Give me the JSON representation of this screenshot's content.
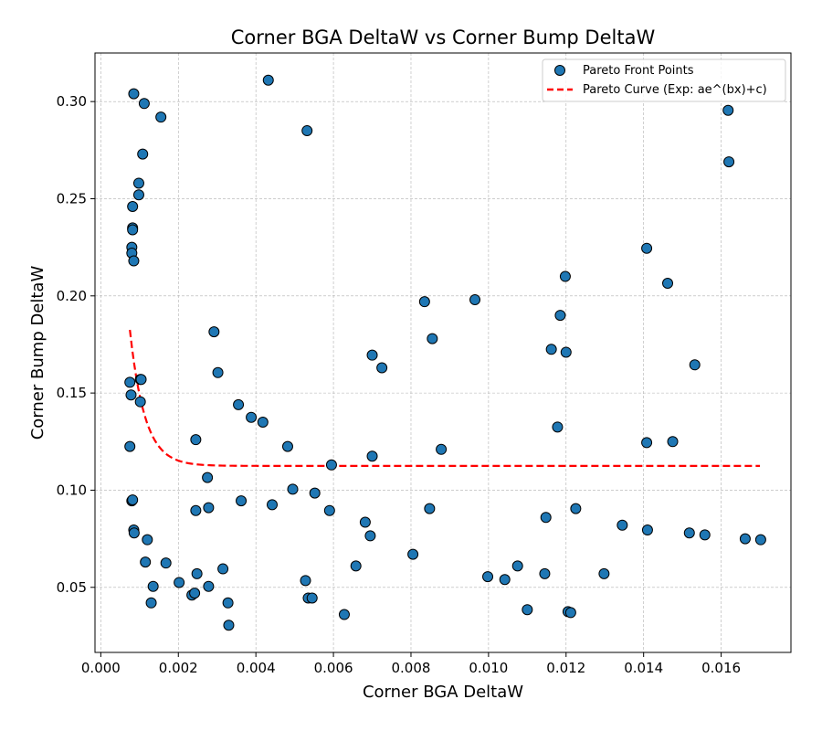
{
  "chart_data": {
    "type": "scatter",
    "title": "Corner BGA DeltaW vs Corner Bump DeltaW",
    "xlabel": "Corner BGA DeltaW",
    "ylabel": "Corner Bump DeltaW",
    "xlim": [
      -0.00015,
      0.0178
    ],
    "ylim": [
      0.0165,
      0.325
    ],
    "xticks": [
      0.0,
      0.002,
      0.004,
      0.006,
      0.008,
      0.01,
      0.012,
      0.014,
      0.016
    ],
    "xtick_labels": [
      "0.000",
      "0.002",
      "0.004",
      "0.006",
      "0.008",
      "0.010",
      "0.012",
      "0.014",
      "0.016"
    ],
    "yticks": [
      0.05,
      0.1,
      0.15,
      0.2,
      0.25,
      0.3
    ],
    "ytick_labels": [
      "0.05",
      "0.10",
      "0.15",
      "0.20",
      "0.25",
      "0.30"
    ],
    "grid": true,
    "legend_position": "top-right",
    "colors": {
      "points": "#1f77b4",
      "point_edge": "#000000",
      "curve": "#ff0000",
      "grid": "#b0b0b0"
    },
    "series": [
      {
        "name": "Pareto Front Points",
        "kind": "scatter",
        "points": [
          [
            0.00085,
            0.304
          ],
          [
            0.00112,
            0.299
          ],
          [
            0.00155,
            0.292
          ],
          [
            0.00108,
            0.273
          ],
          [
            0.00098,
            0.258
          ],
          [
            0.00098,
            0.252
          ],
          [
            0.00082,
            0.246
          ],
          [
            0.00082,
            0.235
          ],
          [
            0.00082,
            0.234
          ],
          [
            0.0008,
            0.225
          ],
          [
            0.0008,
            0.222
          ],
          [
            0.00085,
            0.218
          ],
          [
            0.00075,
            0.1555
          ],
          [
            0.00078,
            0.149
          ],
          [
            0.00102,
            0.157
          ],
          [
            0.00104,
            0.157
          ],
          [
            0.00102,
            0.1455
          ],
          [
            0.00075,
            0.1225
          ],
          [
            0.0008,
            0.0945
          ],
          [
            0.00082,
            0.095
          ],
          [
            0.00085,
            0.0795
          ],
          [
            0.00086,
            0.078
          ],
          [
            0.0012,
            0.0745
          ],
          [
            0.00115,
            0.063
          ],
          [
            0.00135,
            0.0505
          ],
          [
            0.0013,
            0.042
          ],
          [
            0.00168,
            0.0625
          ],
          [
            0.00202,
            0.0525
          ],
          [
            0.00235,
            0.046
          ],
          [
            0.00242,
            0.047
          ],
          [
            0.00245,
            0.0895
          ],
          [
            0.00245,
            0.126
          ],
          [
            0.00248,
            0.057
          ],
          [
            0.00275,
            0.1065
          ],
          [
            0.00278,
            0.091
          ],
          [
            0.00278,
            0.0505
          ],
          [
            0.00292,
            0.1815
          ],
          [
            0.00302,
            0.1605
          ],
          [
            0.00315,
            0.0595
          ],
          [
            0.00328,
            0.042
          ],
          [
            0.0033,
            0.0305
          ],
          [
            0.00355,
            0.144
          ],
          [
            0.00362,
            0.0945
          ],
          [
            0.00388,
            0.1375
          ],
          [
            0.00418,
            0.135
          ],
          [
            0.00432,
            0.311
          ],
          [
            0.00442,
            0.0925
          ],
          [
            0.00482,
            0.1225
          ],
          [
            0.00495,
            0.1005
          ],
          [
            0.00528,
            0.0535
          ],
          [
            0.00532,
            0.285
          ],
          [
            0.00535,
            0.0445
          ],
          [
            0.00545,
            0.0445
          ],
          [
            0.00552,
            0.0985
          ],
          [
            0.0059,
            0.0895
          ],
          [
            0.00595,
            0.113
          ],
          [
            0.00628,
            0.036
          ],
          [
            0.00658,
            0.061
          ],
          [
            0.00682,
            0.0835
          ],
          [
            0.00695,
            0.0765
          ],
          [
            0.007,
            0.1695
          ],
          [
            0.007,
            0.1175
          ],
          [
            0.00725,
            0.163
          ],
          [
            0.00805,
            0.067
          ],
          [
            0.00835,
            0.197
          ],
          [
            0.00848,
            0.0905
          ],
          [
            0.00855,
            0.178
          ],
          [
            0.00878,
            0.121
          ],
          [
            0.00965,
            0.198
          ],
          [
            0.00998,
            0.0555
          ],
          [
            0.01042,
            0.054
          ],
          [
            0.01075,
            0.061
          ],
          [
            0.011,
            0.0385
          ],
          [
            0.01145,
            0.057
          ],
          [
            0.01148,
            0.086
          ],
          [
            0.01162,
            0.1725
          ],
          [
            0.01178,
            0.1325
          ],
          [
            0.01185,
            0.19
          ],
          [
            0.01198,
            0.21
          ],
          [
            0.012,
            0.171
          ],
          [
            0.01205,
            0.0375
          ],
          [
            0.01212,
            0.037
          ],
          [
            0.01225,
            0.0905
          ],
          [
            0.01298,
            0.057
          ],
          [
            0.01345,
            0.082
          ],
          [
            0.0141,
            0.0795
          ],
          [
            0.01408,
            0.1245
          ],
          [
            0.01408,
            0.2245
          ],
          [
            0.01462,
            0.2065
          ],
          [
            0.01475,
            0.125
          ],
          [
            0.01518,
            0.078
          ],
          [
            0.01532,
            0.1645
          ],
          [
            0.01558,
            0.077
          ],
          [
            0.01618,
            0.2955
          ],
          [
            0.0162,
            0.269
          ],
          [
            0.01662,
            0.075
          ],
          [
            0.01702,
            0.0745
          ]
        ]
      },
      {
        "name": "Pareto Curve (Exp: ae^(bx)+c)",
        "kind": "line",
        "style": "dashed",
        "model": {
          "a": 0.07,
          "b": -2600,
          "c": 0.1125,
          "x0": 0.00075,
          "x_start": 0.00075,
          "x_end": 0.017
        }
      }
    ]
  }
}
